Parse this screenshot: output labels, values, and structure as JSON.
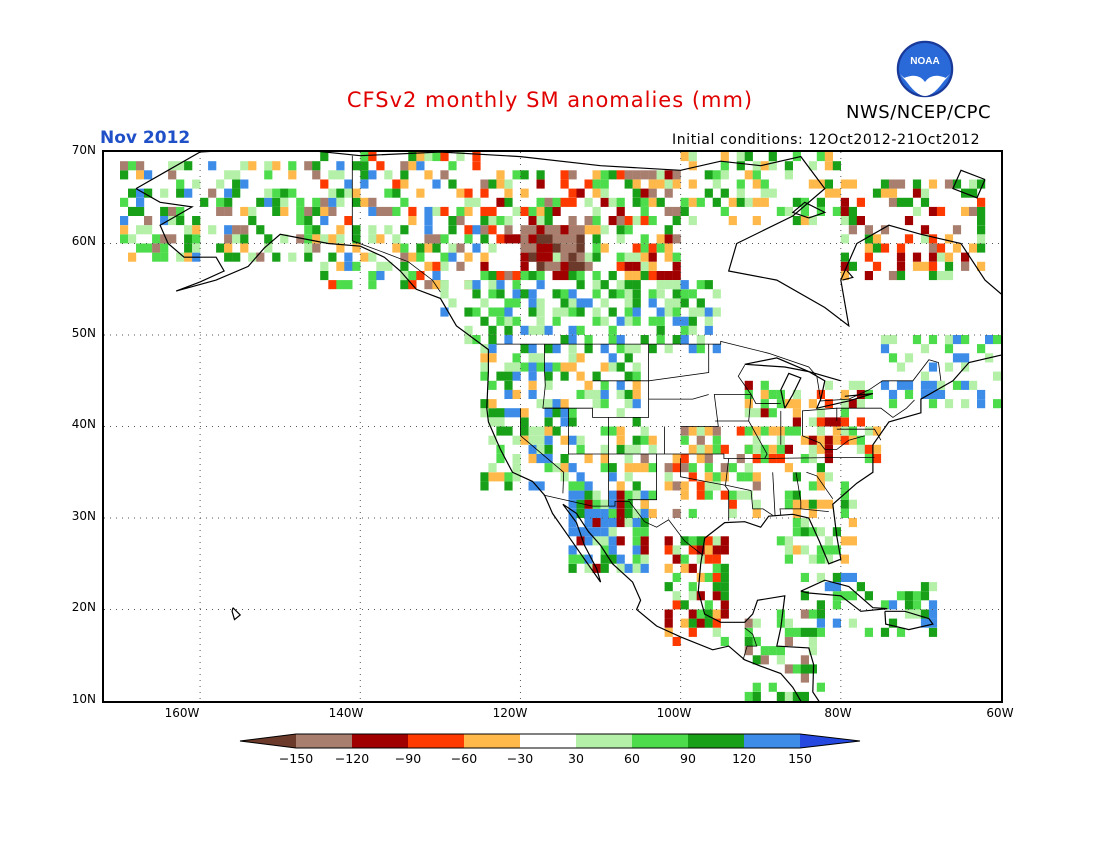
{
  "title": "CFSv2 monthly SM anomalies (mm)",
  "agency": "NWS/NCEP/CPC",
  "valid_month": "Nov 2012",
  "initial_conditions": "Initial conditions: 12Oct2012-21Oct2012",
  "logo_text": "NOAA",
  "map": {
    "lon_range": [
      -172,
      -60
    ],
    "lat_range": [
      10,
      70
    ],
    "lat_labels": [
      "70N",
      "60N",
      "50N",
      "40N",
      "30N",
      "20N",
      "10N"
    ],
    "lon_labels": [
      "160W",
      "140W",
      "120W",
      "100W",
      "80W",
      "60W"
    ],
    "grid": "dotted"
  },
  "colorbar": {
    "labels": [
      "−150",
      "−120",
      "−90",
      "−60",
      "−30",
      "30",
      "60",
      "90",
      "120",
      "150"
    ],
    "colors": [
      "#6b3a2a",
      "#a87e6f",
      "#a00000",
      "#ff3a00",
      "#ffb84a",
      "#ffffff",
      "#b4f0a8",
      "#4cdc4c",
      "#18a018",
      "#3c8ce8",
      "#2448e0"
    ]
  },
  "colors": {
    "title": "#e00000",
    "valid_month": "#2050c8",
    "text": "#000000"
  }
}
